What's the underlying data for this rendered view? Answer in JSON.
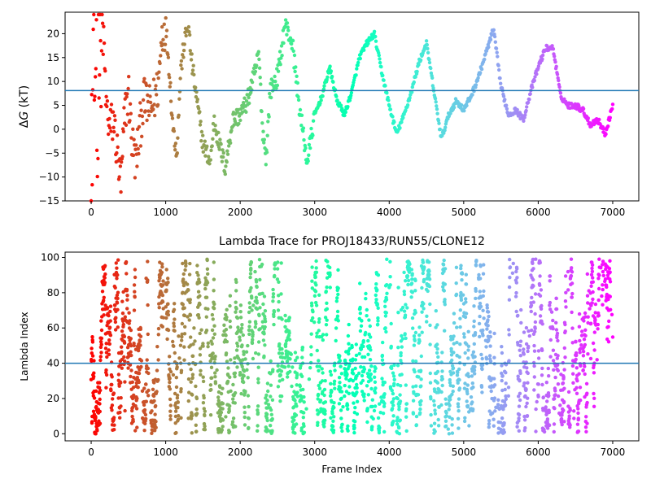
{
  "chart_data": [
    {
      "type": "scatter",
      "title": "",
      "xlabel": "",
      "ylabel": "ΔG (kT)",
      "ylabel_symbol": "Δ",
      "ylabel_var": "G",
      "ylabel_unit": " (kT)",
      "xlim": [
        -350,
        7350
      ],
      "ylim": [
        -15,
        24.5
      ],
      "xticks": [
        0,
        1000,
        2000,
        3000,
        4000,
        5000,
        6000,
        7000
      ],
      "yticks": [
        -15,
        -10,
        -5,
        0,
        5,
        10,
        15,
        20
      ],
      "hline": 8.1,
      "hline_color": "#1f77b4",
      "colormap": "rainbow (color by frame index, red at 0 to violet at 7000)",
      "frames": 7000,
      "series_points": [
        [
          0,
          -12
        ],
        [
          0,
          4
        ],
        [
          0,
          10
        ],
        [
          0,
          20
        ],
        [
          10,
          -4
        ],
        [
          15,
          1
        ],
        [
          20,
          6
        ],
        [
          30,
          14
        ],
        [
          40,
          22
        ],
        [
          60,
          -9
        ],
        [
          70,
          18
        ],
        [
          80,
          -14
        ],
        [
          90,
          2
        ],
        [
          100,
          24
        ],
        [
          130,
          8
        ],
        [
          150,
          22
        ],
        [
          180,
          14
        ],
        [
          200,
          5
        ],
        [
          250,
          0
        ],
        [
          300,
          2
        ],
        [
          350,
          -5
        ],
        [
          400,
          -12
        ],
        [
          450,
          3
        ],
        [
          500,
          8
        ],
        [
          550,
          -3
        ],
        [
          600,
          -7
        ],
        [
          700,
          6
        ],
        [
          800,
          4
        ],
        [
          900,
          9
        ],
        [
          950,
          20
        ],
        [
          1000,
          22
        ],
        [
          1050,
          12
        ],
        [
          1100,
          0
        ],
        [
          1150,
          -5
        ],
        [
          1200,
          12
        ],
        [
          1250,
          18
        ],
        [
          1300,
          22
        ],
        [
          1350,
          14
        ],
        [
          1400,
          8
        ],
        [
          1500,
          -3
        ],
        [
          1600,
          -7
        ],
        [
          1650,
          2
        ],
        [
          1700,
          -2
        ],
        [
          1800,
          -8
        ],
        [
          1900,
          2
        ],
        [
          2000,
          3
        ],
        [
          2100,
          6
        ],
        [
          2200,
          12
        ],
        [
          2250,
          16
        ],
        [
          2300,
          0
        ],
        [
          2350,
          -6
        ],
        [
          2400,
          8
        ],
        [
          2500,
          11
        ],
        [
          2550,
          16
        ],
        [
          2600,
          22
        ],
        [
          2700,
          18
        ],
        [
          2800,
          4
        ],
        [
          2900,
          -7
        ],
        [
          3000,
          3
        ],
        [
          3100,
          7
        ],
        [
          3200,
          13
        ],
        [
          3300,
          6
        ],
        [
          3400,
          3
        ],
        [
          3500,
          8
        ],
        [
          3600,
          15
        ],
        [
          3700,
          18
        ],
        [
          3800,
          20
        ],
        [
          3900,
          12
        ],
        [
          4000,
          5
        ],
        [
          4100,
          -1
        ],
        [
          4200,
          3
        ],
        [
          4300,
          8
        ],
        [
          4400,
          14
        ],
        [
          4500,
          18
        ],
        [
          4600,
          8
        ],
        [
          4700,
          -2
        ],
        [
          4800,
          3
        ],
        [
          4900,
          6
        ],
        [
          5000,
          4
        ],
        [
          5100,
          7
        ],
        [
          5200,
          11
        ],
        [
          5300,
          16
        ],
        [
          5400,
          21
        ],
        [
          5500,
          9
        ],
        [
          5600,
          3
        ],
        [
          5700,
          4
        ],
        [
          5800,
          2
        ],
        [
          5900,
          8
        ],
        [
          6000,
          13
        ],
        [
          6100,
          17
        ],
        [
          6200,
          17
        ],
        [
          6300,
          7
        ],
        [
          6400,
          5
        ],
        [
          6500,
          5
        ],
        [
          6600,
          4
        ],
        [
          6700,
          1
        ],
        [
          6800,
          2
        ],
        [
          6900,
          -1
        ],
        [
          7000,
          5
        ]
      ]
    },
    {
      "type": "scatter",
      "title": "Lambda Trace for PROJ18433/RUN55/CLONE12",
      "xlabel": "Frame Index",
      "ylabel": "Lambda Index",
      "xlim": [
        -350,
        7350
      ],
      "ylim": [
        -4,
        103
      ],
      "xticks": [
        0,
        1000,
        2000,
        3000,
        4000,
        5000,
        6000,
        7000
      ],
      "yticks": [
        0,
        20,
        40,
        60,
        80,
        100
      ],
      "hline": 40,
      "hline_color": "#1f77b4",
      "colormap": "rainbow (color by frame index, red at 0 to violet at 7000)",
      "frames": 7000,
      "value_range": [
        0,
        99
      ]
    }
  ]
}
